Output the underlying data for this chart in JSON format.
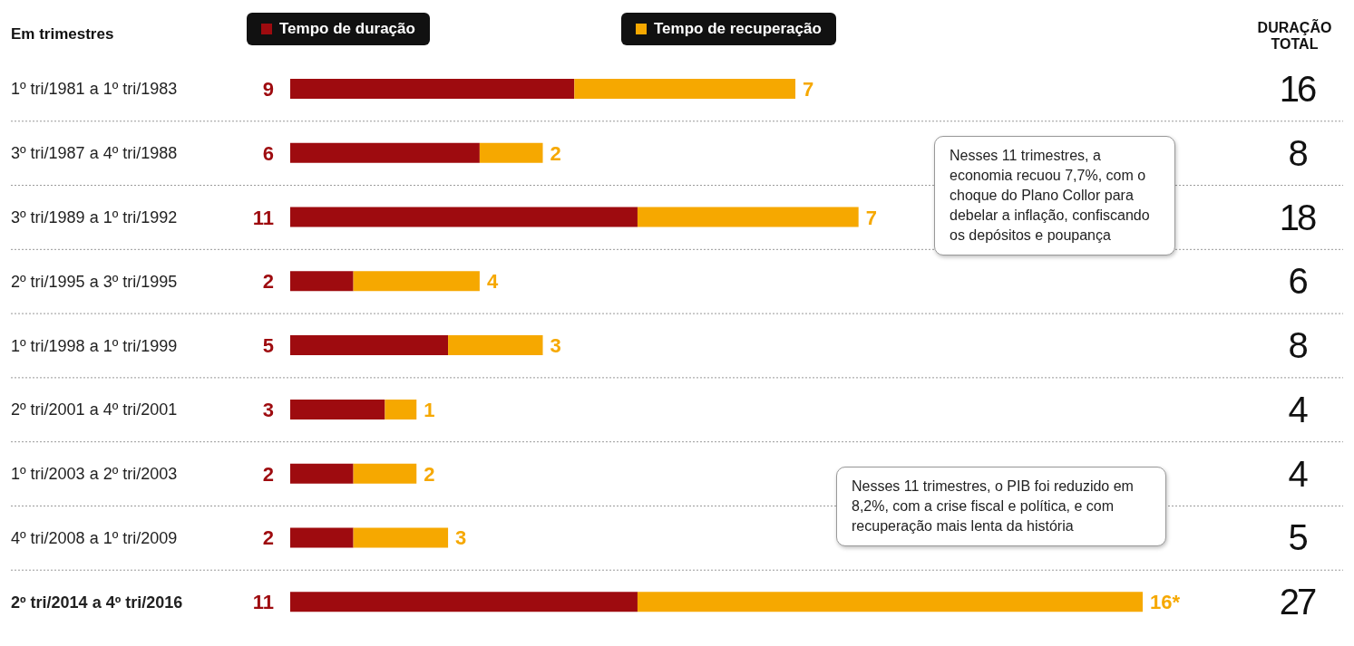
{
  "chart_data": {
    "type": "bar",
    "orientation": "horizontal",
    "stacked": true,
    "ylabel": "Em trimestres",
    "categories": [
      "1º tri/1981 a 1º tri/1983",
      "3º tri/1987 a 4º tri/1988",
      "3º tri/1989 a 1º tri/1992",
      "2º tri/1995 a 3º tri/1995",
      "1º tri/1998 a 1º tri/1999",
      "2º tri/2001 a 4º tri/2001",
      "1º tri/2003 a 2º tri/2003",
      "4º tri/2008 a 1º tri/2009",
      "2º tri/2014 a 4º tri/2016"
    ],
    "series": [
      {
        "name": "Tempo de duração",
        "color": "#9e0b0f",
        "values": [
          9,
          6,
          11,
          2,
          5,
          3,
          2,
          2,
          11
        ]
      },
      {
        "name": "Tempo de recuperação",
        "color": "#f6a800",
        "values": [
          7,
          2,
          7,
          4,
          3,
          1,
          2,
          3,
          16
        ],
        "value_labels": [
          "7",
          "2",
          "7",
          "4",
          "3",
          "1",
          "2",
          "3",
          "16*"
        ]
      }
    ],
    "data_labels": true,
    "annotations": [
      "DURAÇÃO TOTAL",
      "Nesses 11 trimestres, a economia recuou 7,7%, com o choque do Plano Collor para debelar a inflação, confiscando os depósitos e poupança",
      "Nesses 11 trimestres, o PIB foi reduzido em 8,2%, com a crise fiscal e política, e com recuperação mais lenta da história",
      "16",
      "8",
      "18",
      "6",
      "8",
      "4",
      "4",
      "5",
      "27"
    ],
    "legend": "top",
    "grid": "y"
  }
}
